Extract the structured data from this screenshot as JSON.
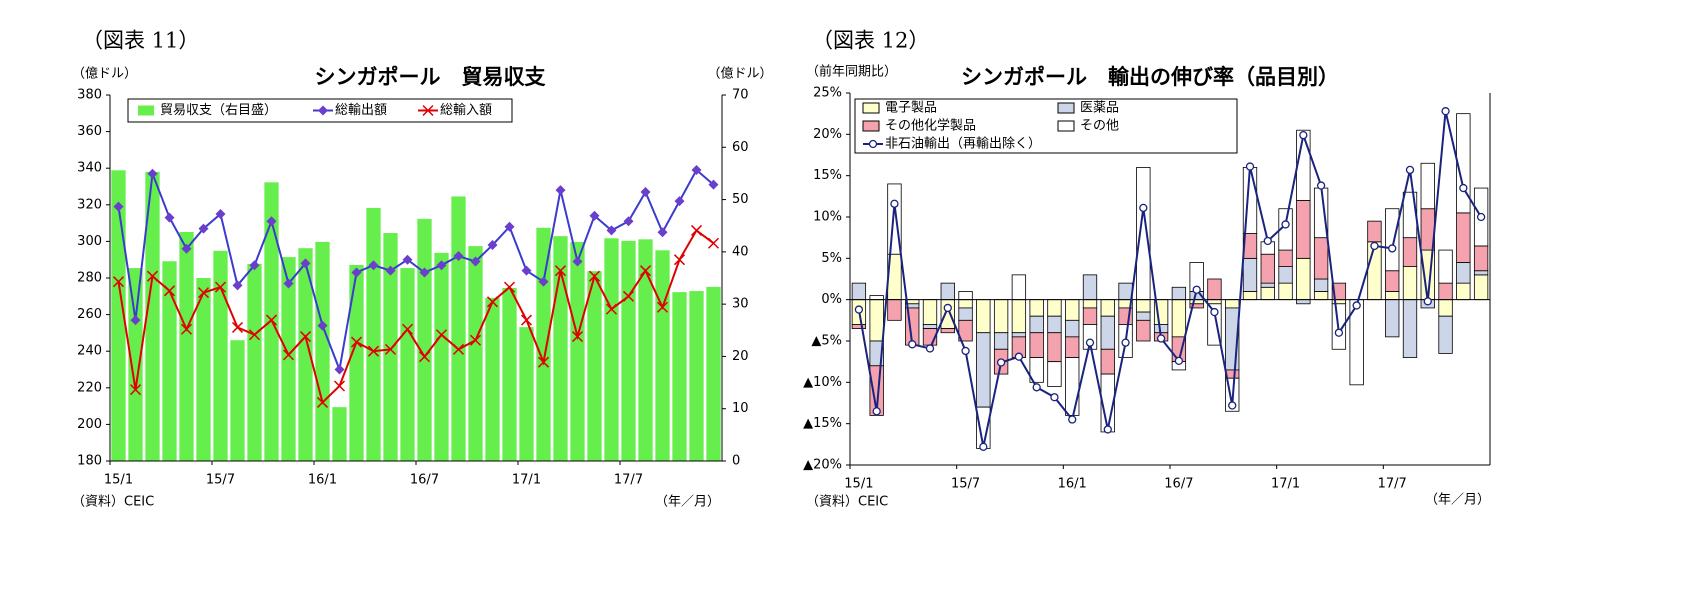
{
  "chart_data": [
    {
      "type": "bar_line",
      "figure_label": "（図表 11）",
      "title": "シンガポール　貿易収支",
      "ylabel": "（億ドル）",
      "y2label": "（億ドル）",
      "xlabel": "（年／月）",
      "source": "（資料）CEIC",
      "categories": [
        "15/1",
        null,
        null,
        null,
        null,
        null,
        "15/7",
        null,
        null,
        null,
        null,
        null,
        "16/1",
        null,
        null,
        null,
        null,
        null,
        "16/7",
        null,
        null,
        null,
        null,
        null,
        "17/1",
        null,
        null,
        null,
        null,
        null,
        "17/7",
        null,
        null,
        null,
        null,
        null
      ],
      "ylim": [
        180,
        380
      ],
      "yticks": [
        180,
        200,
        220,
        240,
        260,
        280,
        300,
        320,
        340,
        360,
        380
      ],
      "y2lim": [
        0,
        70
      ],
      "y2ticks": [
        0,
        10,
        20,
        30,
        40,
        50,
        60,
        70
      ],
      "grid": false,
      "series": [
        {
          "name": "貿易収支（右目盛）",
          "type": "bar",
          "axis": "y2",
          "color": "#66ee4c",
          "values": [
            55.6,
            36.9,
            55.3,
            38.2,
            43.8,
            35,
            40.2,
            23.1,
            37.7,
            53.3,
            39,
            40.7,
            41.9,
            10.3,
            37.5,
            48.4,
            43.6,
            36.9,
            46.3,
            39.8,
            50.6,
            41.1,
            31.2,
            33.1,
            25.6,
            44.6,
            43,
            41.9,
            36.3,
            42.6,
            42.1,
            42.4,
            40.3,
            32.3,
            32.5,
            33.3
          ]
        },
        {
          "name": "総輸出額",
          "type": "line",
          "marker": "diamond",
          "color": "#3b3bd0",
          "marker_color": "#6a3fcc",
          "values": [
            319,
            257,
            337,
            313,
            296,
            307,
            315,
            276,
            287,
            311,
            277,
            288,
            254,
            230,
            283,
            287,
            284,
            290,
            283,
            287,
            292,
            289,
            298,
            308,
            284,
            278,
            328,
            289,
            314,
            306,
            311,
            327,
            305,
            322,
            339,
            331
          ]
        },
        {
          "name": "総輸入額",
          "type": "line",
          "marker": "x",
          "color": "#e00000",
          "marker_color": "#e00000",
          "values": [
            278,
            219,
            281,
            273,
            252,
            272,
            275,
            253,
            249,
            257,
            238,
            248,
            212,
            221,
            245,
            240,
            241,
            252,
            237,
            249,
            241,
            246,
            267,
            275,
            257,
            234,
            284,
            248,
            281,
            263,
            270,
            284,
            264,
            290,
            306,
            299
          ]
        }
      ]
    },
    {
      "type": "stacked_bar_line",
      "figure_label": "（図表 12）",
      "title": "シンガポール　輸出の伸び率（品目別）",
      "ylabel": "（前年同期比）",
      "xlabel": "（年／月）",
      "source": "（資料）CEIC",
      "categories": [
        "15/1",
        null,
        null,
        null,
        null,
        null,
        "15/7",
        null,
        null,
        null,
        null,
        null,
        "16/1",
        null,
        null,
        null,
        null,
        null,
        "16/7",
        null,
        null,
        null,
        null,
        null,
        "17/1",
        null,
        null,
        null,
        null,
        null,
        "17/7",
        null,
        null,
        null,
        null,
        null
      ],
      "ylim": [
        -20,
        25
      ],
      "yticks": [
        {
          "value": -20,
          "label": "▲20%"
        },
        {
          "value": -15,
          "label": "▲15%"
        },
        {
          "value": -10,
          "label": "▲10%"
        },
        {
          "value": -5,
          "label": "▲5%"
        },
        {
          "value": 0,
          "label": "0%"
        },
        {
          "value": 5,
          "label": "5%"
        },
        {
          "value": 10,
          "label": "10%"
        },
        {
          "value": 15,
          "label": "15%"
        },
        {
          "value": 20,
          "label": "20%"
        },
        {
          "value": 25,
          "label": "25%"
        }
      ],
      "grid": false,
      "series": [
        {
          "name": "電子製品",
          "type": "bar",
          "color": "#ffffcc",
          "values": [
            -3,
            -5,
            5.5,
            -0.5,
            -3,
            -3.5,
            -1,
            -4,
            -4,
            -4,
            -2,
            -2,
            -2.5,
            -1,
            -2,
            -1,
            -1.5,
            -3,
            -4.5,
            -0.5,
            -0.5,
            -1,
            1,
            1.5,
            2,
            5,
            1,
            -0.5,
            0,
            7,
            1,
            4,
            6,
            -2,
            2,
            3
          ]
        },
        {
          "name": "医薬品",
          "type": "bar",
          "color": "#ccd6e8",
          "values": [
            2,
            -3,
            0,
            -0.5,
            -0.5,
            2,
            -1.5,
            -9,
            -2,
            -0.5,
            -2,
            -2,
            -2,
            3,
            -4,
            2,
            -1,
            -1,
            1.5,
            1,
            0,
            -7.5,
            4,
            0.5,
            2,
            -0.5,
            1.5,
            0,
            0,
            0,
            -4.5,
            -7,
            -1,
            -4.5,
            2.5,
            0.5
          ]
        },
        {
          "name": "その他化学製品",
          "type": "bar",
          "color": "#f4a3ae",
          "values": [
            -0.5,
            -6,
            -2.5,
            -4.5,
            -2,
            -0.5,
            -2.5,
            0,
            -3,
            -2.5,
            -3,
            -3.5,
            -2.5,
            -2,
            -3,
            -2,
            -2.5,
            -1,
            -3,
            -0.5,
            2.5,
            -1,
            3,
            3.5,
            2,
            7,
            5,
            2,
            0,
            2.5,
            2.5,
            3.5,
            5,
            2,
            6,
            3
          ]
        },
        {
          "name": "その他",
          "type": "bar",
          "color": "#ffffff",
          "values": [
            0,
            0.5,
            8.5,
            0,
            0,
            0,
            1,
            -5,
            0,
            3,
            -3,
            -3,
            -7,
            -3,
            -7,
            -4,
            16,
            0,
            -1,
            3.5,
            -5,
            -4,
            8,
            1.5,
            5,
            8.5,
            6,
            -5.5,
            -10.3,
            0,
            7.5,
            5.5,
            5.5,
            4,
            12,
            7
          ]
        },
        {
          "name": "非石油輸出（再輸出除く）",
          "type": "line",
          "marker": "circle",
          "color": "#1a237e",
          "marker_color": "#1a237e",
          "values": [
            -1.2,
            -13.5,
            11.6,
            -5.4,
            -5.9,
            -1,
            -6.2,
            -17.8,
            -7.6,
            -6.9,
            -10.6,
            -11.8,
            -14.5,
            -5.2,
            -15.7,
            -5.2,
            11.1,
            -4.7,
            -7.4,
            1.2,
            -1.5,
            -12.8,
            16.1,
            7.1,
            9.1,
            19.9,
            13.8,
            -4,
            -0.7,
            6.5,
            6.2,
            15.7,
            -0.2,
            22.8,
            13.5,
            10
          ]
        }
      ]
    }
  ]
}
